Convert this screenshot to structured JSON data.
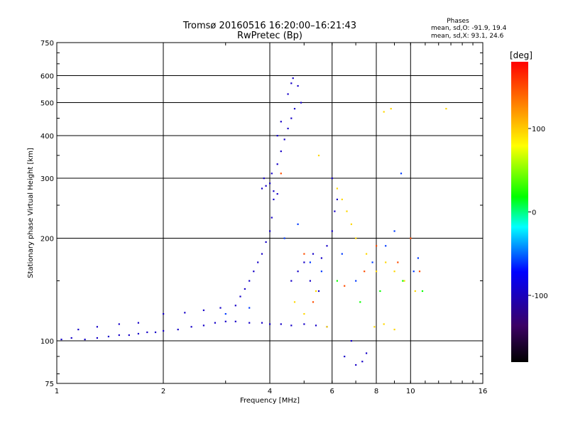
{
  "chart_data": {
    "type": "scatter",
    "title": "Tromsø 20160516 16:20:00–16:21:43",
    "subtitle": "RwPretec (Bp)",
    "stats": {
      "heading": "Phases",
      "line_o": "mean, sd,O: -91.9, 19.4",
      "line_x": "mean, sd,X:  93.1, 24.6"
    },
    "xlabel": "Frequency [MHz]",
    "ylabel": "Stationary phase Virtual Height [km]",
    "x_scale": "log",
    "y_scale": "log",
    "xlim": [
      1,
      16
    ],
    "ylim": [
      75,
      750
    ],
    "x_ticks": [
      1,
      2,
      4,
      6,
      8,
      10,
      16
    ],
    "x_tick_labels": [
      "1",
      "2",
      "4",
      "6",
      "8",
      "10",
      "16"
    ],
    "y_ticks": [
      75,
      100,
      200,
      300,
      400,
      500,
      600,
      750
    ],
    "y_tick_labels": [
      "75",
      "100",
      "200",
      "300",
      "400",
      "500",
      "600",
      "750"
    ],
    "grid": true,
    "colorbar": {
      "label": "[deg]",
      "range": [
        -180,
        180
      ],
      "ticks": [
        100,
        0,
        -100
      ],
      "tick_labels": [
        "100",
        "0",
        "-100"
      ],
      "colormap": "rainbow",
      "colors": [
        "#000000",
        "#3c0064",
        "#0000ff",
        "#00ffff",
        "#00ff00",
        "#ffff00",
        "#ff8000",
        "#ff0000"
      ]
    },
    "series": [
      {
        "phase": -95,
        "points": [
          [
            1.03,
            101
          ],
          [
            1.1,
            102
          ],
          [
            1.2,
            101
          ],
          [
            1.3,
            102
          ],
          [
            1.4,
            103
          ],
          [
            1.5,
            104
          ],
          [
            1.6,
            104
          ],
          [
            1.7,
            105
          ],
          [
            1.8,
            106
          ],
          [
            1.9,
            106
          ],
          [
            2.0,
            107
          ],
          [
            2.2,
            108
          ],
          [
            2.4,
            110
          ],
          [
            2.6,
            111
          ],
          [
            2.8,
            113
          ],
          [
            3.0,
            114
          ],
          [
            3.2,
            114
          ],
          [
            3.5,
            113
          ],
          [
            3.8,
            113
          ],
          [
            4.0,
            112
          ],
          [
            4.3,
            112
          ],
          [
            4.6,
            111
          ],
          [
            5.0,
            112
          ],
          [
            5.4,
            111
          ],
          [
            5.8,
            110
          ],
          [
            1.15,
            108
          ],
          [
            1.3,
            110
          ],
          [
            1.5,
            112
          ],
          [
            1.7,
            113
          ],
          [
            2.0,
            120
          ],
          [
            2.3,
            121
          ],
          [
            2.6,
            123
          ],
          [
            2.9,
            125
          ],
          [
            3.2,
            127
          ],
          [
            3.3,
            135
          ],
          [
            3.4,
            142
          ],
          [
            3.5,
            150
          ],
          [
            3.6,
            160
          ],
          [
            3.7,
            170
          ],
          [
            3.8,
            180
          ],
          [
            3.9,
            195
          ],
          [
            4.0,
            210
          ],
          [
            4.05,
            230
          ],
          [
            3.8,
            280
          ],
          [
            3.9,
            285
          ],
          [
            4.0,
            290
          ],
          [
            4.1,
            275
          ],
          [
            4.2,
            270
          ],
          [
            3.85,
            300
          ],
          [
            4.05,
            310
          ],
          [
            4.1,
            260
          ],
          [
            4.2,
            330
          ],
          [
            4.3,
            360
          ],
          [
            4.4,
            390
          ],
          [
            4.5,
            420
          ],
          [
            4.6,
            450
          ],
          [
            4.7,
            480
          ],
          [
            4.5,
            530
          ],
          [
            4.6,
            570
          ],
          [
            4.65,
            590
          ],
          [
            4.8,
            560
          ],
          [
            4.9,
            500
          ],
          [
            4.3,
            440
          ],
          [
            4.2,
            400
          ],
          [
            4.6,
            150
          ],
          [
            4.8,
            160
          ],
          [
            5.0,
            170
          ],
          [
            5.3,
            180
          ],
          [
            5.6,
            175
          ],
          [
            5.8,
            190
          ],
          [
            6.0,
            210
          ],
          [
            6.1,
            240
          ],
          [
            6.2,
            260
          ],
          [
            6.0,
            300
          ],
          [
            5.2,
            150
          ],
          [
            5.5,
            140
          ],
          [
            6.5,
            90
          ],
          [
            7.0,
            85
          ],
          [
            7.3,
            87
          ],
          [
            7.5,
            92
          ],
          [
            6.8,
            100
          ]
        ]
      },
      {
        "phase": -60,
        "points": [
          [
            3.0,
            120
          ],
          [
            3.5,
            125
          ],
          [
            4.4,
            200
          ],
          [
            4.8,
            220
          ],
          [
            5.2,
            170
          ],
          [
            5.6,
            160
          ],
          [
            6.4,
            180
          ],
          [
            7.0,
            150
          ],
          [
            7.8,
            170
          ],
          [
            8.5,
            190
          ],
          [
            9.0,
            210
          ],
          [
            9.4,
            310
          ],
          [
            10.2,
            160
          ],
          [
            10.5,
            175
          ]
        ]
      },
      {
        "phase": 20,
        "points": [
          [
            6.2,
            150
          ],
          [
            7.2,
            130
          ],
          [
            8.2,
            140
          ],
          [
            9.5,
            150
          ],
          [
            10.8,
            140
          ]
        ]
      },
      {
        "phase": 95,
        "points": [
          [
            4.7,
            130
          ],
          [
            5.0,
            120
          ],
          [
            5.4,
            140
          ],
          [
            5.8,
            110
          ],
          [
            6.2,
            280
          ],
          [
            6.4,
            260
          ],
          [
            6.6,
            240
          ],
          [
            6.8,
            220
          ],
          [
            7.0,
            200
          ],
          [
            7.5,
            180
          ],
          [
            8.0,
            160
          ],
          [
            8.5,
            170
          ],
          [
            9.0,
            160
          ],
          [
            9.6,
            150
          ],
          [
            10.3,
            140
          ],
          [
            7.9,
            110
          ],
          [
            8.4,
            112
          ],
          [
            9.0,
            108
          ],
          [
            5.5,
            350
          ],
          [
            8.4,
            470
          ],
          [
            8.8,
            480
          ],
          [
            12.6,
            480
          ]
        ]
      },
      {
        "phase": 150,
        "points": [
          [
            4.3,
            310
          ],
          [
            5.0,
            180
          ],
          [
            5.3,
            130
          ],
          [
            6.5,
            145
          ],
          [
            7.4,
            160
          ],
          [
            8.0,
            190
          ],
          [
            9.2,
            170
          ],
          [
            10.0,
            200
          ],
          [
            10.6,
            160
          ]
        ]
      }
    ]
  }
}
